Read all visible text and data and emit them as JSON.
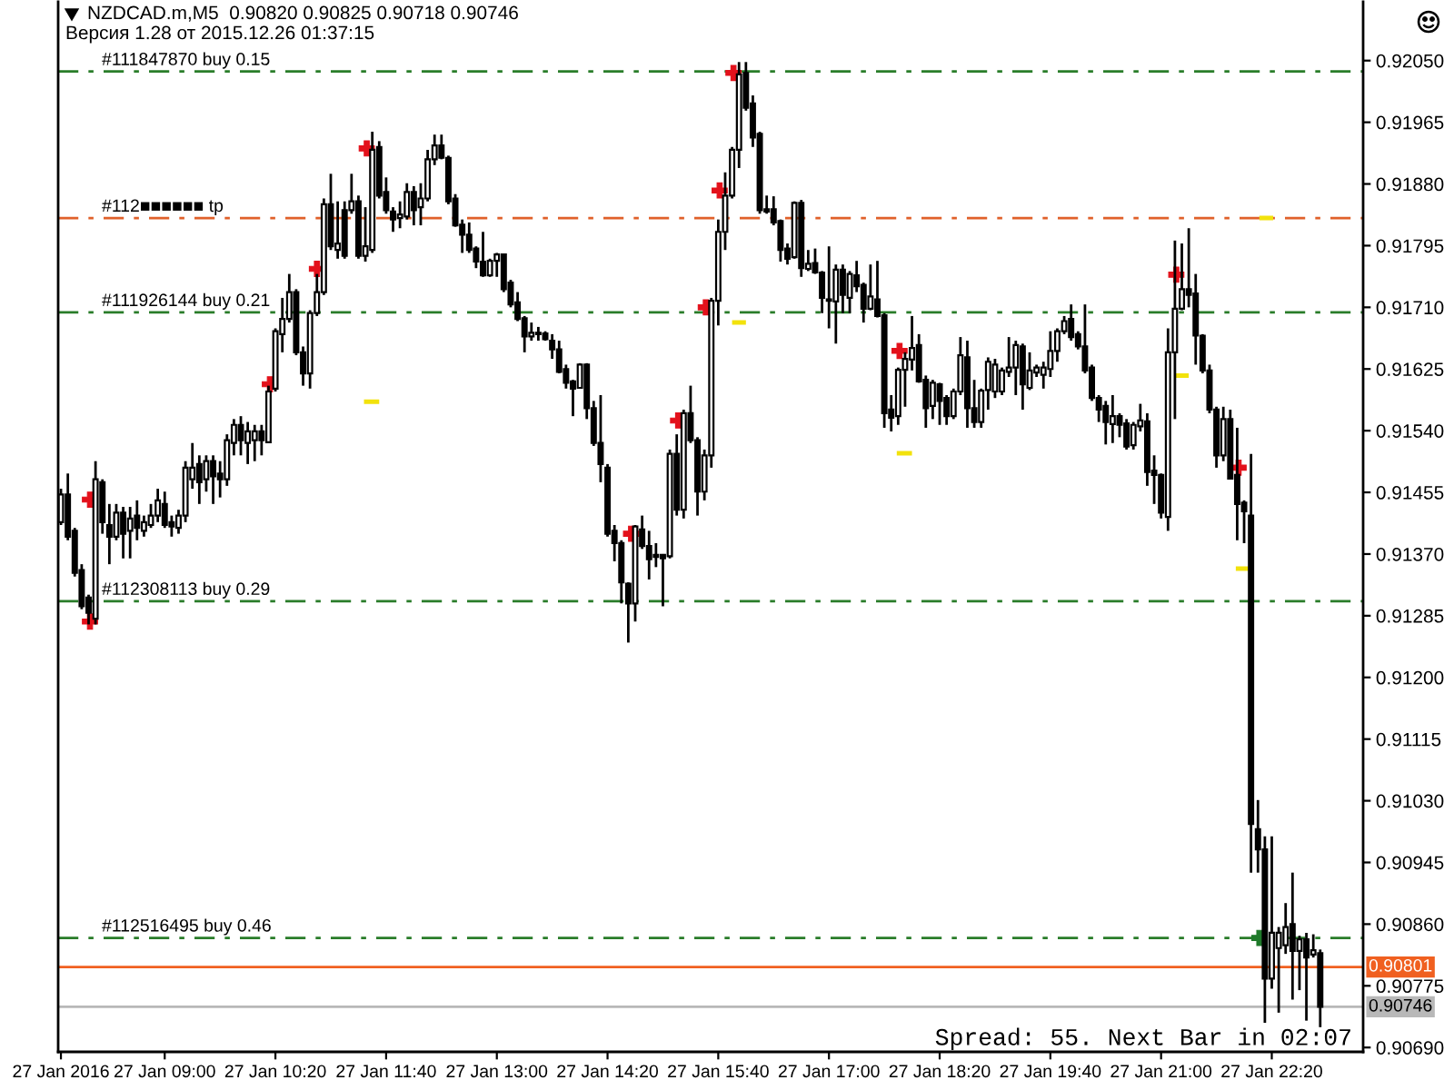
{
  "chart_data": {
    "type": "candlestick",
    "title": "NZDCAD.m,M5  0.90820 0.90825 0.90718 0.90746",
    "subtitle": "Версия 1.28 от 2015.12.26 01:37:15",
    "x": [
      "2016-01-27T07:45",
      "2016-01-27T07:50",
      "2016-01-27T07:55",
      "2016-01-27T08:00",
      "2016-01-27T08:05",
      "2016-01-27T08:10",
      "2016-01-27T08:15",
      "2016-01-27T08:20",
      "2016-01-27T08:25",
      "2016-01-27T08:30",
      "2016-01-27T08:35",
      "2016-01-27T08:40",
      "2016-01-27T08:45",
      "2016-01-27T08:50",
      "2016-01-27T08:55",
      "2016-01-27T09:00",
      "2016-01-27T09:05",
      "2016-01-27T09:10",
      "2016-01-27T09:15",
      "2016-01-27T09:20",
      "2016-01-27T09:25",
      "2016-01-27T09:30",
      "2016-01-27T09:35",
      "2016-01-27T09:40",
      "2016-01-27T09:45",
      "2016-01-27T09:50",
      "2016-01-27T09:55",
      "2016-01-27T10:00",
      "2016-01-27T10:05",
      "2016-01-27T10:10",
      "2016-01-27T10:15",
      "2016-01-27T10:20",
      "2016-01-27T10:25",
      "2016-01-27T10:30",
      "2016-01-27T10:35",
      "2016-01-27T10:40",
      "2016-01-27T10:45",
      "2016-01-27T10:50",
      "2016-01-27T10:55",
      "2016-01-27T11:00",
      "2016-01-27T11:05",
      "2016-01-27T11:10",
      "2016-01-27T11:15",
      "2016-01-27T11:20",
      "2016-01-27T11:25",
      "2016-01-27T11:30",
      "2016-01-27T11:35",
      "2016-01-27T11:40",
      "2016-01-27T11:45",
      "2016-01-27T11:50",
      "2016-01-27T11:55",
      "2016-01-27T12:00",
      "2016-01-27T12:05",
      "2016-01-27T12:10",
      "2016-01-27T12:15",
      "2016-01-27T12:20",
      "2016-01-27T12:25",
      "2016-01-27T12:30",
      "2016-01-27T12:35",
      "2016-01-27T12:40",
      "2016-01-27T12:45",
      "2016-01-27T12:50",
      "2016-01-27T12:55",
      "2016-01-27T13:00",
      "2016-01-27T13:05",
      "2016-01-27T13:10",
      "2016-01-27T13:15",
      "2016-01-27T13:20",
      "2016-01-27T13:25",
      "2016-01-27T13:30",
      "2016-01-27T13:35",
      "2016-01-27T13:40",
      "2016-01-27T13:45",
      "2016-01-27T13:50",
      "2016-01-27T13:55",
      "2016-01-27T14:00",
      "2016-01-27T14:05",
      "2016-01-27T14:10",
      "2016-01-27T14:15",
      "2016-01-27T14:20",
      "2016-01-27T14:25",
      "2016-01-27T14:30",
      "2016-01-27T14:35",
      "2016-01-27T14:40",
      "2016-01-27T14:45",
      "2016-01-27T14:50",
      "2016-01-27T14:55",
      "2016-01-27T15:00",
      "2016-01-27T15:05",
      "2016-01-27T15:10",
      "2016-01-27T15:15",
      "2016-01-27T15:20",
      "2016-01-27T15:25",
      "2016-01-27T15:30",
      "2016-01-27T15:35",
      "2016-01-27T15:40",
      "2016-01-27T15:45",
      "2016-01-27T15:50",
      "2016-01-27T15:55",
      "2016-01-27T16:00",
      "2016-01-27T16:05",
      "2016-01-27T16:10",
      "2016-01-27T16:15",
      "2016-01-27T16:20",
      "2016-01-27T16:25",
      "2016-01-27T16:30",
      "2016-01-27T16:35",
      "2016-01-27T16:40",
      "2016-01-27T16:45",
      "2016-01-27T16:50",
      "2016-01-27T16:55",
      "2016-01-27T17:00",
      "2016-01-27T17:05",
      "2016-01-27T17:10",
      "2016-01-27T17:15",
      "2016-01-27T17:20",
      "2016-01-27T17:25",
      "2016-01-27T17:30",
      "2016-01-27T17:35",
      "2016-01-27T17:40",
      "2016-01-27T17:45",
      "2016-01-27T17:50",
      "2016-01-27T17:55",
      "2016-01-27T18:00",
      "2016-01-27T18:05",
      "2016-01-27T18:10",
      "2016-01-27T18:15",
      "2016-01-27T18:20",
      "2016-01-27T18:25",
      "2016-01-27T18:30",
      "2016-01-27T18:35",
      "2016-01-27T18:40",
      "2016-01-27T18:45",
      "2016-01-27T18:50",
      "2016-01-27T18:55",
      "2016-01-27T19:00",
      "2016-01-27T19:05",
      "2016-01-27T19:10",
      "2016-01-27T19:15",
      "2016-01-27T19:20",
      "2016-01-27T19:25",
      "2016-01-27T19:30",
      "2016-01-27T19:35",
      "2016-01-27T19:40",
      "2016-01-27T19:45",
      "2016-01-27T19:50",
      "2016-01-27T19:55",
      "2016-01-27T20:00",
      "2016-01-27T20:05",
      "2016-01-27T20:10",
      "2016-01-27T20:15",
      "2016-01-27T20:20",
      "2016-01-27T20:25",
      "2016-01-27T20:30",
      "2016-01-27T20:35",
      "2016-01-27T20:40",
      "2016-01-27T20:45",
      "2016-01-27T20:50",
      "2016-01-27T20:55",
      "2016-01-27T21:00",
      "2016-01-27T21:05",
      "2016-01-27T21:10",
      "2016-01-27T21:15",
      "2016-01-27T21:20",
      "2016-01-27T21:25",
      "2016-01-27T21:30",
      "2016-01-27T21:35",
      "2016-01-27T21:40",
      "2016-01-27T21:45",
      "2016-01-27T21:50",
      "2016-01-27T21:55",
      "2016-01-27T22:00",
      "2016-01-27T22:05",
      "2016-01-27T22:10",
      "2016-01-27T22:15",
      "2016-01-27T22:20",
      "2016-01-27T22:25",
      "2016-01-27T22:30",
      "2016-01-27T22:35",
      "2016-01-27T22:40",
      "2016-01-27T22:45",
      "2016-01-27T22:50",
      "2016-01-27T22:55"
    ],
    "ohlc": [
      [
        0.91414,
        0.9146,
        0.9141,
        0.91452
      ],
      [
        0.91452,
        0.91481,
        0.91389,
        0.91394
      ],
      [
        0.91402,
        0.91406,
        0.91339,
        0.91344
      ],
      [
        0.91348,
        0.91356,
        0.91294,
        0.91298
      ],
      [
        0.9131,
        0.91314,
        0.91273,
        0.91289
      ],
      [
        0.91281,
        0.91498,
        0.91273,
        0.91473
      ],
      [
        0.91469,
        0.91473,
        0.91398,
        0.91414
      ],
      [
        0.9141,
        0.91439,
        0.91356,
        0.91394
      ],
      [
        0.91394,
        0.91439,
        0.91389,
        0.91427
      ],
      [
        0.91427,
        0.91435,
        0.91364,
        0.91398
      ],
      [
        0.91402,
        0.91435,
        0.91364,
        0.91419
      ],
      [
        0.91423,
        0.91444,
        0.91389,
        0.91406
      ],
      [
        0.91402,
        0.91423,
        0.91394,
        0.91414
      ],
      [
        0.9141,
        0.91439,
        0.91406,
        0.91423
      ],
      [
        0.91423,
        0.9146,
        0.91414,
        0.91444
      ],
      [
        0.91439,
        0.91456,
        0.91406,
        0.9141
      ],
      [
        0.91414,
        0.91423,
        0.91394,
        0.91408
      ],
      [
        0.91406,
        0.91431,
        0.91398,
        0.91423
      ],
      [
        0.91423,
        0.91498,
        0.91414,
        0.91489
      ],
      [
        0.91473,
        0.91523,
        0.9146,
        0.91489
      ],
      [
        0.91494,
        0.91506,
        0.91439,
        0.91469
      ],
      [
        0.91473,
        0.91506,
        0.91456,
        0.91498
      ],
      [
        0.91498,
        0.91506,
        0.91439,
        0.91477
      ],
      [
        0.91481,
        0.91498,
        0.91448,
        0.91473
      ],
      [
        0.91473,
        0.91535,
        0.91464,
        0.91527
      ],
      [
        0.91523,
        0.91556,
        0.91506,
        0.91548
      ],
      [
        0.91548,
        0.9156,
        0.91506,
        0.91527
      ],
      [
        0.91523,
        0.91552,
        0.91494,
        0.91539
      ],
      [
        0.91527,
        0.91548,
        0.91498,
        0.91539
      ],
      [
        0.91539,
        0.91548,
        0.91506,
        0.91527
      ],
      [
        0.91524,
        0.91602,
        0.91523,
        0.91594
      ],
      [
        0.91598,
        0.91681,
        0.91594,
        0.91677
      ],
      [
        0.91673,
        0.91723,
        0.91648,
        0.91694
      ],
      [
        0.91694,
        0.91756,
        0.91689,
        0.91731
      ],
      [
        0.91731,
        0.91735,
        0.91644,
        0.91648
      ],
      [
        0.91648,
        0.91656,
        0.91602,
        0.91619
      ],
      [
        0.91619,
        0.91706,
        0.91598,
        0.91702
      ],
      [
        0.91702,
        0.91756,
        0.91698,
        0.91731
      ],
      [
        0.91731,
        0.9186,
        0.91727,
        0.91852
      ],
      [
        0.91852,
        0.91894,
        0.91789,
        0.91794
      ],
      [
        0.91789,
        0.91856,
        0.91777,
        0.91798
      ],
      [
        0.91844,
        0.91856,
        0.91777,
        0.91781
      ],
      [
        0.91844,
        0.91894,
        0.91839,
        0.91856
      ],
      [
        0.91856,
        0.91864,
        0.91777,
        0.91781
      ],
      [
        0.91781,
        0.91848,
        0.91773,
        0.91794
      ],
      [
        0.91789,
        0.91952,
        0.91785,
        0.91927
      ],
      [
        0.91931,
        0.91939,
        0.9186,
        0.91864
      ],
      [
        0.91869,
        0.91889,
        0.91839,
        0.91844
      ],
      [
        0.91842,
        0.91848,
        0.91814,
        0.91831
      ],
      [
        0.91833,
        0.91856,
        0.91819,
        0.91838
      ],
      [
        0.91835,
        0.91881,
        0.91831,
        0.91869
      ],
      [
        0.91869,
        0.91877,
        0.91823,
        0.91844
      ],
      [
        0.91848,
        0.91881,
        0.91823,
        0.9186
      ],
      [
        0.9186,
        0.91927,
        0.91856,
        0.91914
      ],
      [
        0.91914,
        0.91948,
        0.91906,
        0.91933
      ],
      [
        0.91933,
        0.91948,
        0.91914,
        0.91916
      ],
      [
        0.91916,
        0.91919,
        0.91852,
        0.91856
      ],
      [
        0.9186,
        0.91866,
        0.91821,
        0.91823
      ],
      [
        0.91824,
        0.91831,
        0.91785,
        0.9181
      ],
      [
        0.9181,
        0.91827,
        0.91785,
        0.91789
      ],
      [
        0.91791,
        0.91794,
        0.91764,
        0.91773
      ],
      [
        0.91773,
        0.91814,
        0.91752,
        0.91754
      ],
      [
        0.91754,
        0.91777,
        0.91752,
        0.91774
      ],
      [
        0.91774,
        0.91785,
        0.91752,
        0.91783
      ],
      [
        0.91783,
        0.91784,
        0.91731,
        0.91735
      ],
      [
        0.91744,
        0.91748,
        0.9171,
        0.91714
      ],
      [
        0.91717,
        0.91731,
        0.91691,
        0.91694
      ],
      [
        0.91695,
        0.91698,
        0.91648,
        0.9167
      ],
      [
        0.9167,
        0.91689,
        0.91664,
        0.91675
      ],
      [
        0.91675,
        0.91683,
        0.91664,
        0.91673
      ],
      [
        0.91674,
        0.91677,
        0.91664,
        0.91666
      ],
      [
        0.91664,
        0.91673,
        0.91639,
        0.91652
      ],
      [
        0.91652,
        0.91664,
        0.91619,
        0.91621
      ],
      [
        0.91625,
        0.91631,
        0.91598,
        0.91606
      ],
      [
        0.91608,
        0.9161,
        0.9156,
        0.91598
      ],
      [
        0.91599,
        0.91633,
        0.91598,
        0.91631
      ],
      [
        0.91631,
        0.91633,
        0.91556,
        0.91571
      ],
      [
        0.91571,
        0.91581,
        0.91519,
        0.91523
      ],
      [
        0.91523,
        0.91589,
        0.91469,
        0.91494
      ],
      [
        0.91489,
        0.91494,
        0.91394,
        0.91398
      ],
      [
        0.91402,
        0.9141,
        0.9136,
        0.91385
      ],
      [
        0.91385,
        0.91389,
        0.91302,
        0.91331
      ],
      [
        0.91329,
        0.91331,
        0.91248,
        0.91302
      ],
      [
        0.91302,
        0.9141,
        0.91277,
        0.91408
      ],
      [
        0.91404,
        0.91423,
        0.91377,
        0.91381
      ],
      [
        0.91381,
        0.91402,
        0.91335,
        0.91363
      ],
      [
        0.91369,
        0.91385,
        0.91352,
        0.91366
      ],
      [
        0.91369,
        0.9137,
        0.91298,
        0.91364
      ],
      [
        0.91367,
        0.91514,
        0.91364,
        0.91508
      ],
      [
        0.91508,
        0.91535,
        0.91423,
        0.91431
      ],
      [
        0.91431,
        0.91569,
        0.91419,
        0.91564
      ],
      [
        0.91564,
        0.91602,
        0.91523,
        0.91527
      ],
      [
        0.91527,
        0.91531,
        0.91423,
        0.91456
      ],
      [
        0.91456,
        0.91514,
        0.91444,
        0.91506
      ],
      [
        0.91506,
        0.91723,
        0.91489,
        0.91719
      ],
      [
        0.91719,
        0.91831,
        0.91685,
        0.91814
      ],
      [
        0.91814,
        0.91896,
        0.91789,
        0.91864
      ],
      [
        0.91864,
        0.91931,
        0.9186,
        0.91927
      ],
      [
        0.91927,
        0.92048,
        0.91902,
        0.92031
      ],
      [
        0.92033,
        0.92048,
        0.91981,
        0.91985
      ],
      [
        0.91991,
        0.92002,
        0.91931,
        0.91944
      ],
      [
        0.91949,
        0.91952,
        0.91839,
        0.91844
      ],
      [
        0.91845,
        0.91864,
        0.91839,
        0.91842
      ],
      [
        0.91845,
        0.91863,
        0.91823,
        0.91827
      ],
      [
        0.91829,
        0.91831,
        0.91773,
        0.91789
      ],
      [
        0.91791,
        0.91798,
        0.91769,
        0.91777
      ],
      [
        0.91779,
        0.91856,
        0.91777,
        0.91854
      ],
      [
        0.91854,
        0.91858,
        0.91752,
        0.91764
      ],
      [
        0.91763,
        0.91789,
        0.9176,
        0.9177
      ],
      [
        0.91771,
        0.91791,
        0.91756,
        0.91758
      ],
      [
        0.91758,
        0.9176,
        0.91702,
        0.91723
      ],
      [
        0.91721,
        0.91794,
        0.91681,
        0.91719
      ],
      [
        0.91718,
        0.91769,
        0.9166,
        0.91762
      ],
      [
        0.91762,
        0.91769,
        0.91702,
        0.91727
      ],
      [
        0.91723,
        0.9176,
        0.91702,
        0.91756
      ],
      [
        0.91754,
        0.91774,
        0.91731,
        0.91739
      ],
      [
        0.91741,
        0.91744,
        0.91689,
        0.91708
      ],
      [
        0.91708,
        0.91769,
        0.91706,
        0.91725
      ],
      [
        0.91721,
        0.91774,
        0.91696,
        0.91698
      ],
      [
        0.91699,
        0.91702,
        0.91544,
        0.91564
      ],
      [
        0.91569,
        0.91589,
        0.91539,
        0.91558
      ],
      [
        0.9156,
        0.91627,
        0.91548,
        0.91624
      ],
      [
        0.91624,
        0.91648,
        0.91573,
        0.91639
      ],
      [
        0.91638,
        0.91698,
        0.91623,
        0.91654
      ],
      [
        0.91658,
        0.91673,
        0.91606,
        0.91608
      ],
      [
        0.9161,
        0.91616,
        0.91544,
        0.91571
      ],
      [
        0.91574,
        0.9161,
        0.91556,
        0.91606
      ],
      [
        0.91604,
        0.91606,
        0.91548,
        0.91581
      ],
      [
        0.91585,
        0.91589,
        0.91548,
        0.9156
      ],
      [
        0.9156,
        0.91598,
        0.91556,
        0.91594
      ],
      [
        0.91594,
        0.91669,
        0.91589,
        0.91644
      ],
      [
        0.91641,
        0.91664,
        0.91544,
        0.91571
      ],
      [
        0.91571,
        0.9161,
        0.91544,
        0.91552
      ],
      [
        0.91552,
        0.91598,
        0.91544,
        0.91595
      ],
      [
        0.91596,
        0.91641,
        0.91569,
        0.91635
      ],
      [
        0.91594,
        0.91639,
        0.91585,
        0.91631
      ],
      [
        0.91594,
        0.91627,
        0.91589,
        0.91623
      ],
      [
        0.91621,
        0.91669,
        0.91614,
        0.91627
      ],
      [
        0.91627,
        0.91664,
        0.91589,
        0.91658
      ],
      [
        0.91656,
        0.9166,
        0.91569,
        0.91604
      ],
      [
        0.91599,
        0.91648,
        0.91596,
        0.91623
      ],
      [
        0.9162,
        0.91631,
        0.91614,
        0.91627
      ],
      [
        0.91617,
        0.91635,
        0.91598,
        0.91627
      ],
      [
        0.91625,
        0.91677,
        0.91614,
        0.9165
      ],
      [
        0.9165,
        0.91681,
        0.91635,
        0.91677
      ],
      [
        0.91677,
        0.91698,
        0.91673,
        0.91691
      ],
      [
        0.91694,
        0.91714,
        0.91664,
        0.91669
      ],
      [
        0.91673,
        0.91677,
        0.91652,
        0.91656
      ],
      [
        0.91656,
        0.91714,
        0.91619,
        0.91623
      ],
      [
        0.91627,
        0.91631,
        0.91581,
        0.91585
      ],
      [
        0.91585,
        0.91589,
        0.91552,
        0.91569
      ],
      [
        0.91574,
        0.91581,
        0.91521,
        0.91552
      ],
      [
        0.91549,
        0.91589,
        0.91523,
        0.9156
      ],
      [
        0.9156,
        0.91564,
        0.91531,
        0.91548
      ],
      [
        0.9155,
        0.91556,
        0.91514,
        0.91518
      ],
      [
        0.9152,
        0.91552,
        0.91514,
        0.91548
      ],
      [
        0.91546,
        0.91577,
        0.91539,
        0.91554
      ],
      [
        0.91553,
        0.91564,
        0.91464,
        0.91483
      ],
      [
        0.91485,
        0.91506,
        0.91439,
        0.91479
      ],
      [
        0.91479,
        0.91481,
        0.91419,
        0.91427
      ],
      [
        0.91421,
        0.91681,
        0.91402,
        0.91648
      ],
      [
        0.91648,
        0.91802,
        0.91556,
        0.91708
      ],
      [
        0.91708,
        0.91798,
        0.91706,
        0.91735
      ],
      [
        0.91735,
        0.91819,
        0.9171,
        0.91727
      ],
      [
        0.91729,
        0.91756,
        0.91631,
        0.91671
      ],
      [
        0.91671,
        0.91673,
        0.91619,
        0.91623
      ],
      [
        0.91623,
        0.91631,
        0.91564,
        0.91569
      ],
      [
        0.91569,
        0.91573,
        0.91489,
        0.91506
      ],
      [
        0.91506,
        0.91573,
        0.91498,
        0.91556
      ],
      [
        0.91556,
        0.91569,
        0.91473,
        0.91474
      ],
      [
        0.91479,
        0.91544,
        0.91389,
        0.91439
      ],
      [
        0.91441,
        0.91444,
        0.91385,
        0.91429
      ],
      [
        0.91423,
        0.91508,
        0.90931,
        0.90998
      ],
      [
        0.90991,
        0.91031,
        0.90931,
        0.90963
      ],
      [
        0.90963,
        0.90981,
        0.90724,
        0.90785
      ],
      [
        0.90785,
        0.90981,
        0.90771,
        0.90848
      ],
      [
        0.90827,
        0.90856,
        0.90738,
        0.90848
      ],
      [
        0.90831,
        0.90889,
        0.90819,
        0.90856
      ],
      [
        0.9086,
        0.90931,
        0.90756,
        0.90823
      ],
      [
        0.90823,
        0.90844,
        0.90769,
        0.90839
      ],
      [
        0.90839,
        0.90848,
        0.90727,
        0.90814
      ],
      [
        0.90818,
        0.90846,
        0.90814,
        0.90824
      ],
      [
        0.9082,
        0.90825,
        0.90718,
        0.90746
      ]
    ],
    "series": [
      {
        "type": "scatter",
        "marker": "cross",
        "color": "#e3111b",
        "x": [
          "2016-01-27T08:06",
          "2016-01-27T08:06",
          "2016-01-27T10:16",
          "2016-01-27T10:50",
          "2016-01-27T11:26",
          "2016-01-27T14:37",
          "2016-01-27T15:11",
          "2016-01-27T15:31",
          "2016-01-27T15:41",
          "2016-01-27T15:51",
          "2016-01-27T17:51",
          "2016-01-27T21:11",
          "2016-01-27T21:56"
        ],
        "values": [
          0.91445,
          0.91277,
          0.91604,
          0.91763,
          0.91929,
          0.91398,
          0.91554,
          0.9171,
          0.91871,
          0.92033,
          0.9165,
          0.91755,
          0.91489
        ]
      },
      {
        "type": "scatter",
        "marker": "cross",
        "color": "#1f7a2a",
        "x": [
          "2016-01-27T22:11"
        ],
        "values": [
          0.90841
        ]
      },
      {
        "type": "line",
        "color": "#f2e20c",
        "x": [
          "2016-01-27T11:24",
          "2016-01-27T11:35",
          null,
          "2016-01-27T15:50",
          "2016-01-27T16:00",
          null,
          "2016-01-27T17:49",
          "2016-01-27T18:00",
          null,
          "2016-01-27T21:10",
          "2016-01-27T21:20",
          null,
          "2016-01-27T21:54",
          "2016-01-27T22:03",
          null,
          "2016-01-27T22:11",
          "2016-01-27T22:21"
        ],
        "values": [
          0.9158,
          0.9158,
          null,
          0.91689,
          0.91689,
          null,
          0.91509,
          0.91509,
          null,
          0.91616,
          0.91616,
          null,
          0.9135,
          0.9135,
          null,
          0.91833,
          0.91833
        ]
      }
    ],
    "ref_lines": [
      {
        "axis": "y",
        "value": 0.92035,
        "label": "#111847870 buy 0.15",
        "color": "#2a7d2a",
        "line_style": "dashdot"
      },
      {
        "axis": "y",
        "value": 0.91833,
        "label": "#112■■■■■■ tp",
        "color": "#e0602a",
        "line_style": "dashdot"
      },
      {
        "axis": "y",
        "value": 0.91703,
        "label": "#111926144 buy 0.21",
        "color": "#2a7d2a",
        "line_style": "dashdot"
      },
      {
        "axis": "y",
        "value": 0.91305,
        "label": "#112308113 buy 0.29",
        "color": "#2a7d2a",
        "line_style": "dashdot"
      },
      {
        "axis": "y",
        "value": 0.90841,
        "label": "#112516495 buy 0.46",
        "color": "#2a7d2a",
        "line_style": "dashdot"
      },
      {
        "axis": "y",
        "value": 0.90801,
        "label": "0.90801",
        "color": "#f06020",
        "line_style": "solid"
      },
      {
        "axis": "y",
        "value": 0.90746,
        "label": "0.90746",
        "color": "#b8b8b8",
        "line_style": "solid"
      }
    ],
    "annotations": [
      "Spread: 55. Next Bar in 02:07"
    ],
    "xlim": [
      "2016-01-27T07:43",
      "2016-01-27T23:26"
    ],
    "xticks": [
      {
        "value": "2016-01-27T07:45",
        "label": "27 Jan 2016"
      },
      {
        "value": "2016-01-27T09:00",
        "label": "27 Jan 09:00"
      },
      {
        "value": "2016-01-27T10:20",
        "label": "27 Jan 10:20"
      },
      {
        "value": "2016-01-27T11:40",
        "label": "27 Jan 11:40"
      },
      {
        "value": "2016-01-27T13:00",
        "label": "27 Jan 13:00"
      },
      {
        "value": "2016-01-27T14:20",
        "label": "27 Jan 14:20"
      },
      {
        "value": "2016-01-27T15:40",
        "label": "27 Jan 15:40"
      },
      {
        "value": "2016-01-27T17:00",
        "label": "27 Jan 17:00"
      },
      {
        "value": "2016-01-27T18:20",
        "label": "27 Jan 18:20"
      },
      {
        "value": "2016-01-27T19:40",
        "label": "27 Jan 19:40"
      },
      {
        "value": "2016-01-27T21:00",
        "label": "27 Jan 21:00"
      },
      {
        "value": "2016-01-27T22:20",
        "label": "27 Jan 22:20"
      }
    ],
    "ylim": [
      0.90684,
      0.92131
    ],
    "yticks": [
      {
        "value": 0.9205,
        "label": "0.92050"
      },
      {
        "value": 0.91965,
        "label": "0.91965"
      },
      {
        "value": 0.9188,
        "label": "0.91880"
      },
      {
        "value": 0.91795,
        "label": "0.91795"
      },
      {
        "value": 0.9171,
        "label": "0.91710"
      },
      {
        "value": 0.91625,
        "label": "0.91625"
      },
      {
        "value": 0.9154,
        "label": "0.91540"
      },
      {
        "value": 0.91455,
        "label": "0.91455"
      },
      {
        "value": 0.9137,
        "label": "0.91370"
      },
      {
        "value": 0.91285,
        "label": "0.91285"
      },
      {
        "value": 0.912,
        "label": "0.91200"
      },
      {
        "value": 0.91115,
        "label": "0.91115"
      },
      {
        "value": 0.9103,
        "label": "0.91030"
      },
      {
        "value": 0.90945,
        "label": "0.90945"
      },
      {
        "value": 0.9086,
        "label": "0.90860"
      },
      {
        "value": 0.90775,
        "label": "0.90775"
      },
      {
        "value": 0.9069,
        "label": "0.90690"
      }
    ]
  }
}
